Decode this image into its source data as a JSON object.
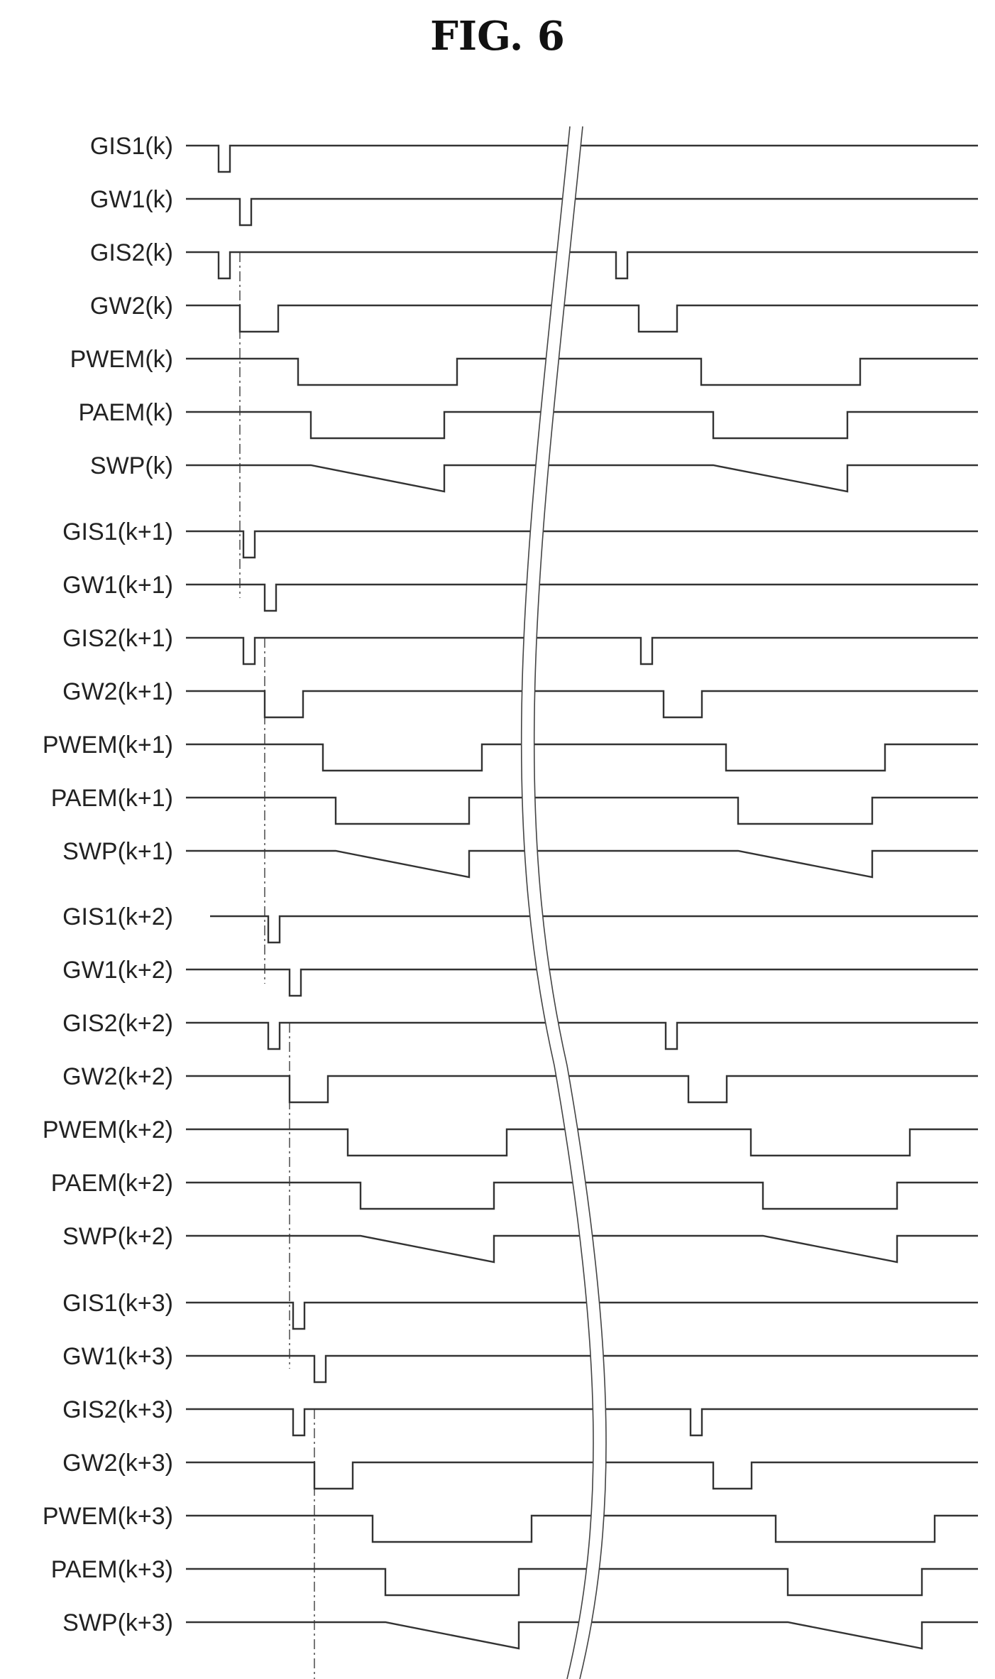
{
  "figure_title": "FIG. 6",
  "groups": [
    {
      "index": "k",
      "signals": [
        {
          "label": "GIS1(k)",
          "kind": "pulse_low"
        },
        {
          "label": "GW1(k)",
          "kind": "pulse_low"
        },
        {
          "label": "GIS2(k)",
          "kind": "pulse_low"
        },
        {
          "label": "GW2(k)",
          "kind": "pulse_low"
        },
        {
          "label": "PWEM(k)",
          "kind": "pulse_low"
        },
        {
          "label": "PAEM(k)",
          "kind": "pulse_low"
        },
        {
          "label": "SWP(k)",
          "kind": "sweep"
        }
      ]
    },
    {
      "index": "k+1",
      "signals": [
        {
          "label": "GIS1(k+1)",
          "kind": "pulse_low"
        },
        {
          "label": "GW1(k+1)",
          "kind": "pulse_low"
        },
        {
          "label": "GIS2(k+1)",
          "kind": "pulse_low"
        },
        {
          "label": "GW2(k+1)",
          "kind": "pulse_low"
        },
        {
          "label": "PWEM(k+1)",
          "kind": "pulse_low"
        },
        {
          "label": "PAEM(k+1)",
          "kind": "pulse_low"
        },
        {
          "label": "SWP(k+1)",
          "kind": "sweep"
        }
      ]
    },
    {
      "index": "k+2",
      "signals": [
        {
          "label": "GIS1(k+2)",
          "kind": "pulse_low"
        },
        {
          "label": "GW1(k+2)",
          "kind": "pulse_low"
        },
        {
          "label": "GIS2(k+2)",
          "kind": "pulse_low"
        },
        {
          "label": "GW2(k+2)",
          "kind": "pulse_low"
        },
        {
          "label": "PWEM(k+2)",
          "kind": "pulse_low"
        },
        {
          "label": "PAEM(k+2)",
          "kind": "pulse_low"
        },
        {
          "label": "SWP(k+2)",
          "kind": "sweep"
        }
      ]
    },
    {
      "index": "k+3",
      "signals": [
        {
          "label": "GIS1(k+3)",
          "kind": "pulse_low"
        },
        {
          "label": "GW1(k+3)",
          "kind": "pulse_low"
        },
        {
          "label": "GIS2(k+3)",
          "kind": "pulse_low"
        },
        {
          "label": "GW2(k+3)",
          "kind": "pulse_low"
        },
        {
          "label": "PWEM(k+3)",
          "kind": "pulse_low"
        },
        {
          "label": "PAEM(k+3)",
          "kind": "pulse_low"
        },
        {
          "label": "SWP(k+3)",
          "kind": "sweep"
        }
      ]
    }
  ],
  "time_break": true,
  "colors": {
    "line": "#333333",
    "text": "#222222",
    "background": "#ffffff"
  }
}
